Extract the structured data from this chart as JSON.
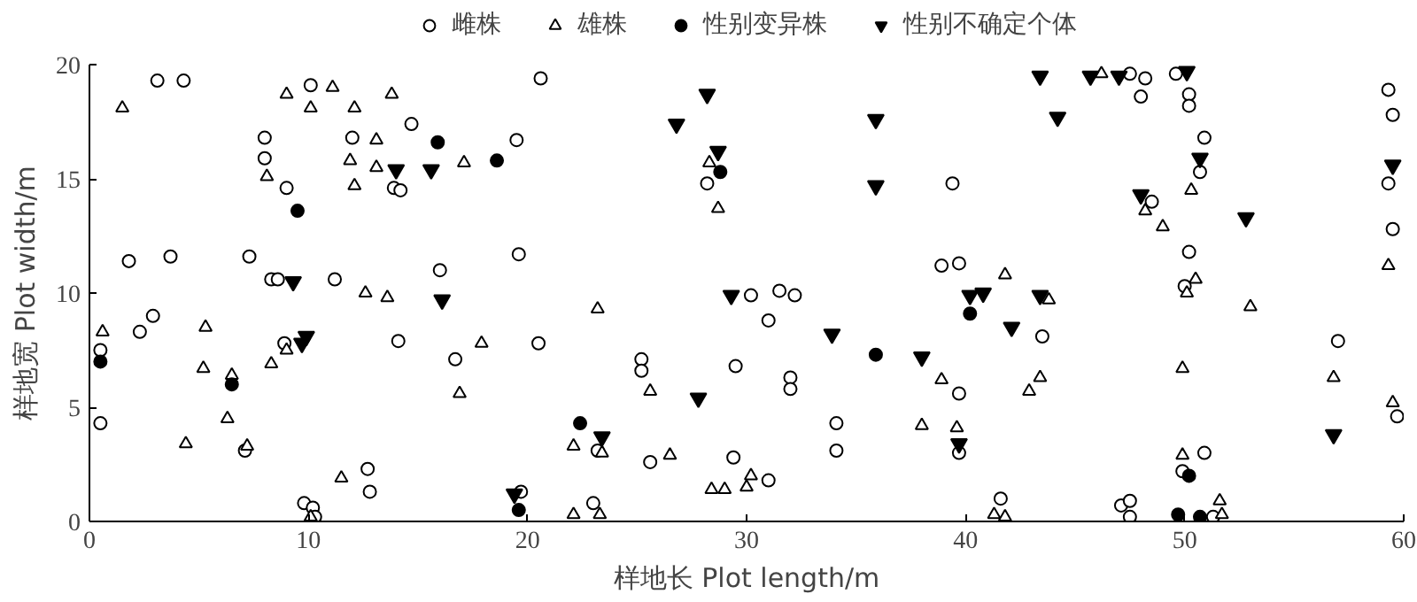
{
  "chart_data": {
    "type": "scatter",
    "xlabel": "样地长 Plot length/m",
    "ylabel": "样地宽 Plot width/m",
    "xlim": [
      0,
      60
    ],
    "ylim": [
      0,
      20
    ],
    "xticks": [
      0,
      10,
      20,
      30,
      40,
      50,
      60
    ],
    "yticks": [
      0,
      5,
      10,
      15,
      20
    ],
    "grid": false,
    "legend": "top",
    "series": [
      {
        "name": "雌株",
        "color": "#000000",
        "marker": "circle",
        "x": [
          3.1,
          4.3,
          10.1,
          8.0,
          12.0,
          8.0,
          9.0,
          1.8,
          3.7,
          7.3,
          8.3,
          8.6,
          11.2,
          0.5,
          2.3,
          2.9,
          8.9,
          0.5,
          7.1,
          9.8,
          10.2,
          10.3,
          12.7,
          12.8,
          20.6,
          14.7,
          19.5,
          13.9,
          14.2,
          19.6,
          16.0,
          14.1,
          16.7,
          20.5,
          25.2,
          25.2,
          25.6,
          19.7,
          23.0,
          23.2,
          28.2,
          30.2,
          31.5,
          32.2,
          31.0,
          29.5,
          32.0,
          32.0,
          29.4,
          31.0,
          34.1,
          34.1,
          47.5,
          48.2,
          49.6,
          48.0,
          50.2,
          50.2,
          50.9,
          50.7,
          48.5,
          39.4,
          50.2,
          38.9,
          39.7,
          50.0,
          43.5,
          39.7,
          39.7,
          41.6,
          47.1,
          47.5,
          47.5,
          49.9,
          50.9,
          51.3,
          59.3,
          59.5,
          59.3,
          59.5,
          57.0,
          59.7
        ],
        "values": [
          19.3,
          19.3,
          19.1,
          16.8,
          16.8,
          15.9,
          14.6,
          11.4,
          11.6,
          11.6,
          10.6,
          10.6,
          10.6,
          7.5,
          8.3,
          9.0,
          7.8,
          4.3,
          3.1,
          0.8,
          0.6,
          0.2,
          2.3,
          1.3,
          19.4,
          17.4,
          16.7,
          14.6,
          14.5,
          11.7,
          11.0,
          7.9,
          7.1,
          7.8,
          7.1,
          6.6,
          2.6,
          1.3,
          0.8,
          3.1,
          14.8,
          9.9,
          10.1,
          9.9,
          8.8,
          6.8,
          6.3,
          5.8,
          2.8,
          1.8,
          4.3,
          3.1,
          19.6,
          19.4,
          19.6,
          18.6,
          18.7,
          18.2,
          16.8,
          15.3,
          14.0,
          14.8,
          11.8,
          11.2,
          11.3,
          10.3,
          8.1,
          5.6,
          3.0,
          1.0,
          0.7,
          0.9,
          0.2,
          2.2,
          3.0,
          0.2,
          18.9,
          17.8,
          14.8,
          12.8,
          7.9,
          4.6
        ]
      },
      {
        "name": "雄株",
        "color": "#000000",
        "marker": "triangle",
        "x": [
          1.5,
          9.0,
          10.1,
          11.1,
          12.1,
          8.1,
          11.9,
          12.1,
          12.6,
          0.6,
          5.3,
          5.2,
          6.5,
          8.3,
          9.0,
          6.3,
          4.4,
          7.2,
          11.5,
          10.1,
          13.8,
          13.1,
          13.1,
          17.1,
          13.6,
          23.2,
          17.9,
          16.9,
          22.1,
          23.4,
          22.1,
          23.3,
          25.6,
          28.3,
          28.7,
          26.5,
          28.4,
          29.0,
          30.0,
          30.2,
          38.0,
          46.2,
          50.3,
          48.2,
          49.0,
          41.8,
          43.8,
          50.5,
          50.1,
          49.9,
          43.4,
          42.9,
          38.9,
          39.6,
          49.9,
          41.3,
          41.8,
          51.6,
          51.7,
          53.0,
          59.3,
          56.8,
          59.5
        ],
        "values": [
          18.1,
          18.7,
          18.1,
          19.0,
          18.1,
          15.1,
          15.8,
          14.7,
          10.0,
          8.3,
          8.5,
          6.7,
          6.4,
          6.9,
          7.5,
          4.5,
          3.4,
          3.3,
          1.9,
          0.2,
          18.7,
          16.7,
          15.5,
          15.7,
          9.8,
          9.3,
          7.8,
          5.6,
          3.3,
          3.0,
          0.3,
          0.3,
          5.7,
          15.7,
          13.7,
          2.9,
          1.4,
          1.4,
          1.5,
          2.0,
          4.2,
          19.6,
          14.5,
          13.6,
          12.9,
          10.8,
          9.7,
          10.6,
          10.0,
          6.7,
          6.3,
          5.7,
          6.2,
          4.1,
          2.9,
          0.3,
          0.2,
          0.9,
          0.3,
          9.4,
          11.2,
          6.3,
          5.2
        ]
      },
      {
        "name": "性别变异株",
        "color": "#000000",
        "marker": "circle",
        "x": [
          0.5,
          9.5,
          6.5,
          15.9,
          18.6,
          22.4,
          19.6,
          28.8,
          35.9,
          40.2,
          50.2,
          49.7,
          50.7
        ],
        "values": [
          7.0,
          13.6,
          6.0,
          16.6,
          15.8,
          4.3,
          0.5,
          15.3,
          7.3,
          9.1,
          2.0,
          0.3,
          0.2
        ]
      },
      {
        "name": "性别不确定个体",
        "color": "#000000",
        "marker": "triangle",
        "x": [
          9.3,
          9.7,
          9.9,
          14.0,
          15.6,
          16.1,
          23.4,
          19.4,
          28.2,
          26.8,
          28.7,
          35.9,
          35.9,
          29.3,
          33.9,
          38.0,
          27.8,
          43.4,
          45.7,
          47.0,
          50.1,
          44.2,
          50.7,
          48.0,
          40.2,
          40.8,
          43.4,
          42.1,
          39.7,
          52.8,
          59.5,
          56.8
        ],
        "values": [
          10.5,
          7.8,
          8.1,
          15.4,
          15.4,
          9.7,
          3.7,
          1.2,
          18.7,
          17.4,
          16.2,
          17.6,
          14.7,
          9.9,
          8.2,
          7.2,
          5.4,
          19.5,
          19.5,
          19.5,
          19.7,
          17.7,
          15.9,
          14.3,
          9.9,
          10.0,
          9.9,
          8.5,
          3.4,
          13.3,
          15.6,
          3.8
        ]
      }
    ]
  }
}
